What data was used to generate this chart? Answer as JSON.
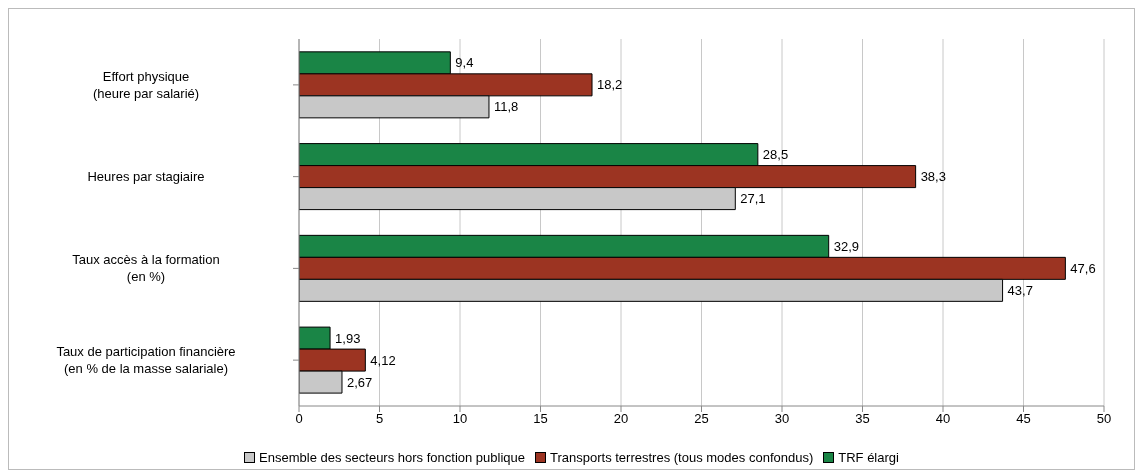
{
  "chart_data": {
    "type": "bar",
    "orientation": "horizontal",
    "categories": [
      "Effort physique\n(heure par salarié)",
      "Heures par stagiaire",
      "Taux accès à la formation\n(en %)",
      "Taux de participation financière\n(en % de la masse salariale)"
    ],
    "series": [
      {
        "name": "Ensemble des secteurs hors fonction publique",
        "color": "#c8c8c8",
        "values": [
          11.8,
          27.1,
          43.7,
          2.67
        ],
        "value_labels": [
          "11,8",
          "27,1",
          "43,7",
          "2,67"
        ]
      },
      {
        "name": "Transports terrestres (tous modes confondus)",
        "color": "#9c3422",
        "values": [
          18.2,
          38.3,
          47.6,
          4.12
        ],
        "value_labels": [
          "18,2",
          "38,3",
          "47,6",
          "4,12"
        ]
      },
      {
        "name": "TRF élargi",
        "color": "#1a8546",
        "values": [
          9.4,
          28.5,
          32.9,
          1.93
        ],
        "value_labels": [
          "9,4",
          "28,5",
          "32,9",
          "1,93"
        ]
      }
    ],
    "xlim": [
      0,
      50
    ],
    "xticks": [
      0,
      5,
      10,
      15,
      20,
      25,
      30,
      35,
      40,
      45,
      50
    ],
    "grid": "x",
    "legend": "bottom"
  }
}
